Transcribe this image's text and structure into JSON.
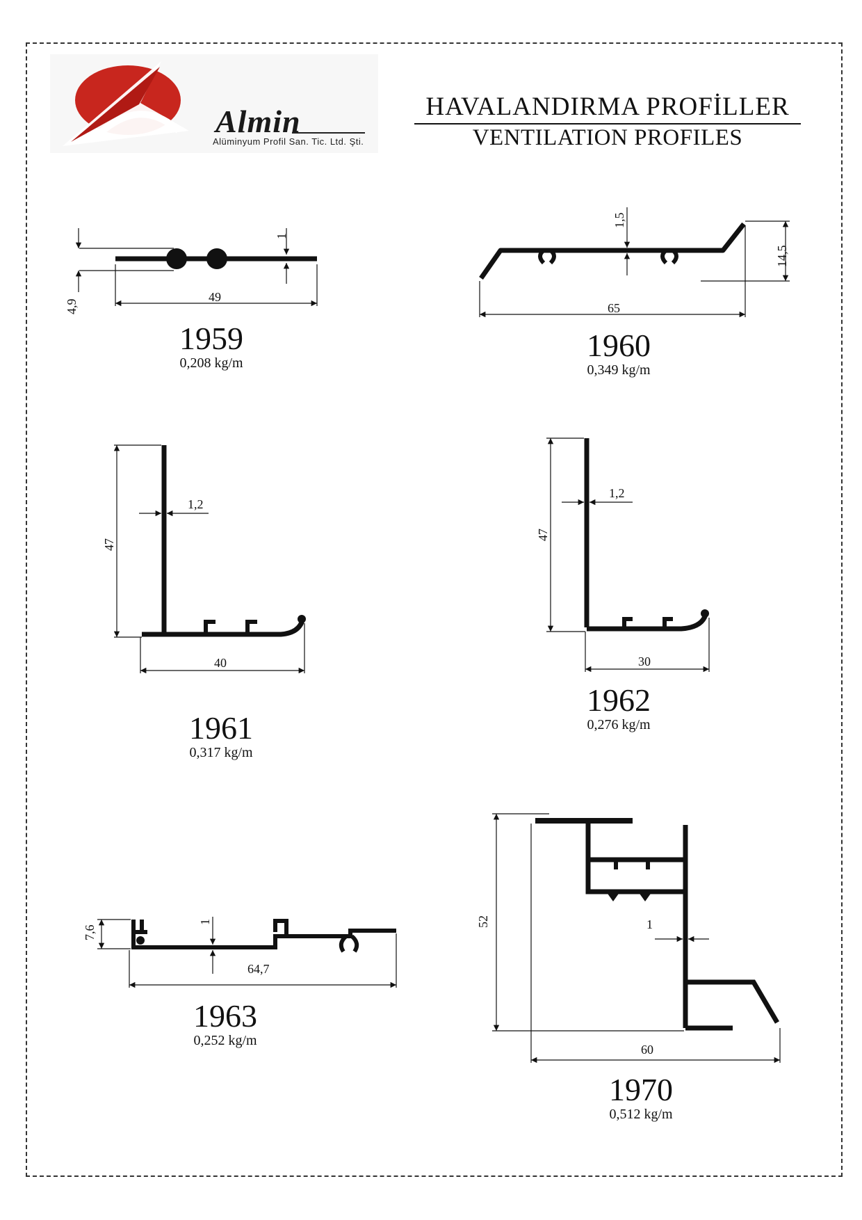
{
  "header": {
    "company": "Almin",
    "company_tagline": "Alüminyum Profil San. Tic. Ltd. Şti.",
    "title_tr": "HAVALANDIRMA  PROFİLLER",
    "title_en": "VENTILATION PROFILES"
  },
  "colors": {
    "logo_red": "#c8261e",
    "profile": "#111111",
    "frame": "#333333"
  },
  "profiles": [
    {
      "code": "1959",
      "weight": "0,208 kg/m",
      "dims": [
        "4,9",
        "49",
        "1"
      ]
    },
    {
      "code": "1960",
      "weight": "0,349 kg/m",
      "dims": [
        "1,5",
        "14,5",
        "65"
      ]
    },
    {
      "code": "1961",
      "weight": "0,317 kg/m",
      "dims": [
        "47",
        "1,2",
        "40"
      ]
    },
    {
      "code": "1962",
      "weight": "0,276 kg/m",
      "dims": [
        "47",
        "1,2",
        "30"
      ]
    },
    {
      "code": "1963",
      "weight": "0,252 kg/m",
      "dims": [
        "7,6",
        "1",
        "64,7"
      ]
    },
    {
      "code": "1970",
      "weight": "0,512 kg/m",
      "dims": [
        "52",
        "1",
        "60"
      ]
    }
  ]
}
